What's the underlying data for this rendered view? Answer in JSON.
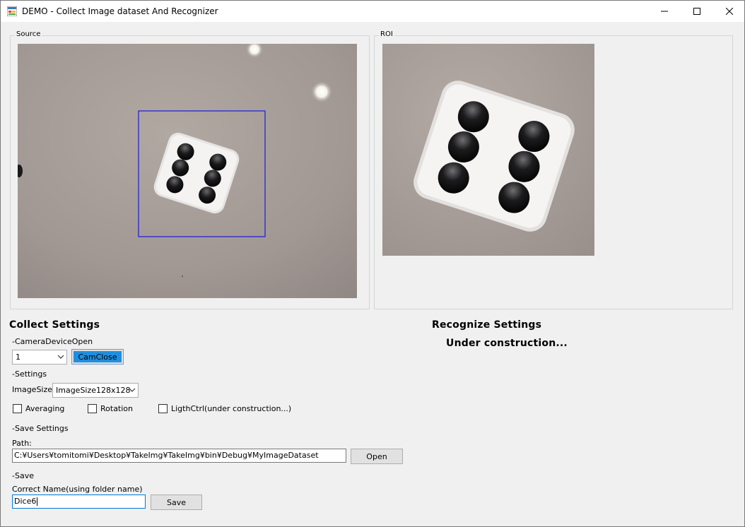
{
  "window": {
    "title": "DEMO - Collect Image dataset And Recognizer"
  },
  "source": {
    "label": "Source"
  },
  "roi": {
    "label": "ROI"
  },
  "collect": {
    "title": "Collect Settings",
    "camera_section": "-CameraDeviceOpen",
    "camera_device_value": "1",
    "cam_button_label": "CamClose",
    "settings_section": "-Settings",
    "image_size_label": "ImageSize:",
    "image_size_value": "ImageSize128x128",
    "averaging_label": "Averaging",
    "rotation_label": "Rotation",
    "lightctrl_label": "LigthCtrl(under construction...)",
    "save_settings_section": "-Save Settings",
    "path_label": "Path:",
    "path_value": "C:¥Users¥tomitomi¥Desktop¥TakeImg¥TakeImg¥bin¥Debug¥MyImageDataset",
    "open_button_label": "Open",
    "save_section": "-Save",
    "correct_name_label": "Correct Name(using folder name)",
    "correct_name_value": "Dice6",
    "save_button_label": "Save"
  },
  "recognize": {
    "title": "Recognize Settings",
    "status": "Under construction..."
  },
  "colors": {
    "roi_box": "#1a1adc",
    "active_button": "#1e8fe0",
    "window_bg": "#f0f0f0"
  }
}
